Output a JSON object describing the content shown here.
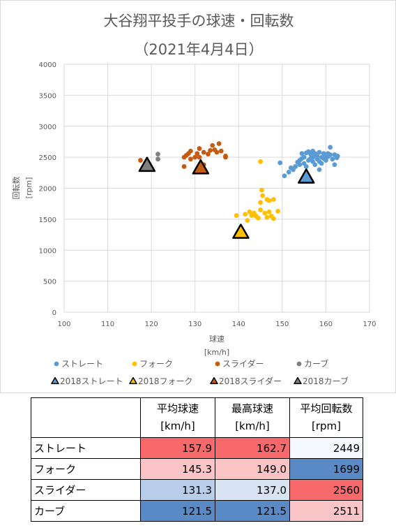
{
  "chart_data": {
    "type": "scatter",
    "title": "大谷翔平投手の球速・回転数",
    "subtitle": "（2021年4月4日）",
    "xlabel": "球速",
    "xlabel_unit": "[km/h]",
    "ylabel": "回転数",
    "ylabel_unit": "[rpm]",
    "xlim": [
      100,
      170
    ],
    "ylim": [
      0,
      4000
    ],
    "xticks": [
      "100",
      "110",
      "120",
      "130",
      "140",
      "150",
      "160",
      "170"
    ],
    "yticks": [
      "0",
      "500",
      "1000",
      "1500",
      "2000",
      "2500",
      "3000",
      "3500",
      "4000"
    ],
    "grid": true,
    "legend_position": "bottom",
    "series": [
      {
        "name": "ストレート",
        "color": "#5b9bd5",
        "marker": "circle",
        "points": [
          [
            149.5,
            2410
          ],
          [
            150.5,
            2200
          ],
          [
            151.5,
            2260
          ],
          [
            152,
            2330
          ],
          [
            152.5,
            2300
          ],
          [
            153,
            2350
          ],
          [
            153.5,
            2420
          ],
          [
            154,
            2450
          ],
          [
            154,
            2380
          ],
          [
            154.5,
            2560
          ],
          [
            154.5,
            2480
          ],
          [
            155,
            2400
          ],
          [
            155,
            2500
          ],
          [
            155.5,
            2570
          ],
          [
            155.5,
            2350
          ],
          [
            156,
            2590
          ],
          [
            156,
            2450
          ],
          [
            156.5,
            2480
          ],
          [
            156.5,
            2550
          ],
          [
            157,
            2600
          ],
          [
            157,
            2430
          ],
          [
            157,
            2500
          ],
          [
            157.5,
            2380
          ],
          [
            157.5,
            2560
          ],
          [
            158,
            2470
          ],
          [
            158,
            2520
          ],
          [
            158.5,
            2430
          ],
          [
            158.5,
            2300
          ],
          [
            158.5,
            2580
          ],
          [
            159,
            2500
          ],
          [
            159,
            2400
          ],
          [
            159.5,
            2560
          ],
          [
            159.5,
            2480
          ],
          [
            160,
            2520
          ],
          [
            160,
            2450
          ],
          [
            160.5,
            2560
          ],
          [
            160.5,
            2510
          ],
          [
            161,
            2660
          ],
          [
            161,
            2540
          ],
          [
            161.5,
            2470
          ],
          [
            162,
            2540
          ],
          [
            162,
            2380
          ],
          [
            162.5,
            2490
          ],
          [
            162.7,
            2520
          ]
        ]
      },
      {
        "name": "フォーク",
        "color": "#ffc000",
        "marker": "circle",
        "points": [
          [
            139.5,
            1560
          ],
          [
            141.5,
            1580
          ],
          [
            142,
            1480
          ],
          [
            142.5,
            1620
          ],
          [
            143,
            1560
          ],
          [
            143.5,
            1600
          ],
          [
            144,
            1550
          ],
          [
            144.5,
            1520
          ],
          [
            145,
            1650
          ],
          [
            145,
            1770
          ],
          [
            145.3,
            1970
          ],
          [
            145.5,
            1880
          ],
          [
            145,
            2430
          ],
          [
            146,
            1600
          ],
          [
            146.5,
            1820
          ],
          [
            146.5,
            1530
          ],
          [
            147,
            1620
          ],
          [
            147,
            1800
          ],
          [
            147.5,
            1550
          ],
          [
            148,
            1510
          ],
          [
            148,
            1820
          ],
          [
            149,
            1630
          ]
        ]
      },
      {
        "name": "スライダー",
        "color": "#c55a11",
        "marker": "circle",
        "points": [
          [
            117.5,
            2450
          ],
          [
            127.5,
            2350
          ],
          [
            127.5,
            2500
          ],
          [
            128,
            2530
          ],
          [
            128.5,
            2560
          ],
          [
            129,
            2600
          ],
          [
            129,
            2470
          ],
          [
            130,
            2500
          ],
          [
            130.5,
            2560
          ],
          [
            131,
            2640
          ],
          [
            131,
            2500
          ],
          [
            132,
            2580
          ],
          [
            132,
            2380
          ],
          [
            133,
            2550
          ],
          [
            133.5,
            2610
          ],
          [
            134,
            2690
          ],
          [
            134.5,
            2620
          ],
          [
            135,
            2580
          ],
          [
            135.5,
            2720
          ],
          [
            136,
            2600
          ],
          [
            137,
            2520
          ],
          [
            137,
            2500
          ]
        ]
      },
      {
        "name": "カーブ",
        "color": "#7f7f7f",
        "marker": "circle",
        "points": [
          [
            121.5,
            2550
          ],
          [
            121.5,
            2470
          ]
        ]
      },
      {
        "name": "2018ストレート",
        "color": "#5b9bd5",
        "marker": "triangle",
        "points": [
          [
            155.5,
            2170
          ]
        ]
      },
      {
        "name": "2018フォーク",
        "color": "#ffc000",
        "marker": "triangle",
        "points": [
          [
            140.5,
            1280
          ]
        ]
      },
      {
        "name": "2018スライダー",
        "color": "#c55a11",
        "marker": "triangle",
        "points": [
          [
            131.3,
            2320
          ]
        ]
      },
      {
        "name": "2018カーブ",
        "color": "#7f7f7f",
        "marker": "triangle",
        "points": [
          [
            119,
            2360
          ]
        ]
      }
    ]
  },
  "table": {
    "headers": [
      {
        "line1": "平均球速",
        "line2": "[km/h]"
      },
      {
        "line1": "最高球速",
        "line2": "[km/h]"
      },
      {
        "line1": "平均回転数",
        "line2": "[rpm]"
      }
    ],
    "rows": [
      {
        "name": "ストレート",
        "avg_speed": "157.9",
        "max_speed": "162.7",
        "avg_spin": "2449",
        "colors": [
          "#f8696b",
          "#f8696b",
          "#f5f8fc"
        ]
      },
      {
        "name": "フォーク",
        "avg_speed": "145.3",
        "max_speed": "149.0",
        "avg_spin": "1699",
        "colors": [
          "#fbc4c6",
          "#fac3c4",
          "#5a8ac6"
        ]
      },
      {
        "name": "スライダー",
        "avg_speed": "131.3",
        "max_speed": "137.0",
        "avg_spin": "2560",
        "colors": [
          "#b8cde9",
          "#d7e2f2",
          "#f8696b"
        ]
      },
      {
        "name": "カーブ",
        "avg_speed": "121.5",
        "max_speed": "121.5",
        "avg_spin": "2511",
        "colors": [
          "#5a8ac6",
          "#5a8ac6",
          "#fbc4c6"
        ]
      }
    ]
  }
}
